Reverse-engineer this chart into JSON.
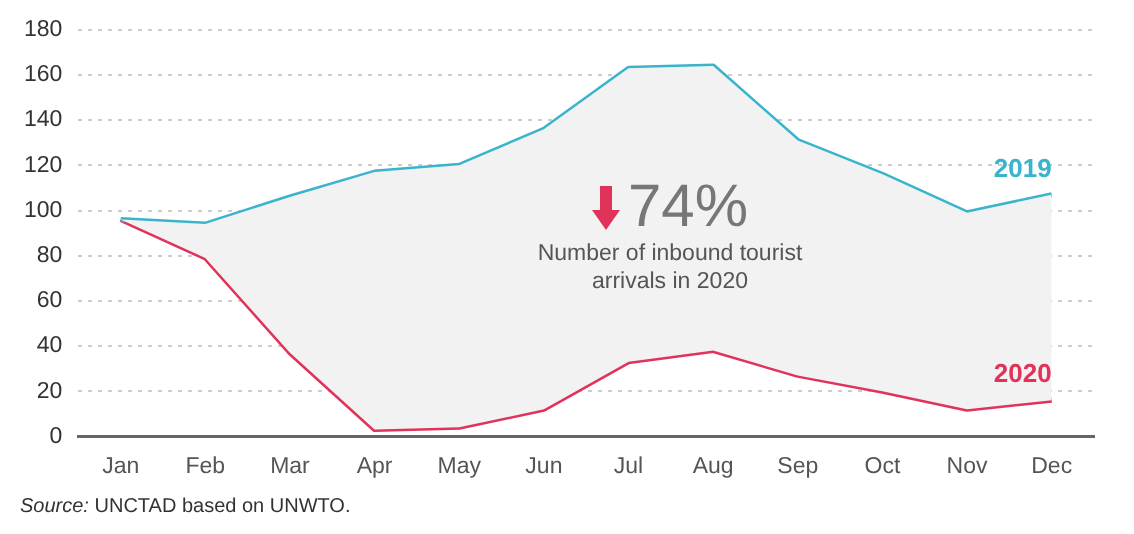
{
  "chart_data": {
    "type": "line",
    "categories": [
      "Jan",
      "Feb",
      "Mar",
      "Apr",
      "May",
      "Jun",
      "Jul",
      "Aug",
      "Sep",
      "Oct",
      "Nov",
      "Dec"
    ],
    "series": [
      {
        "name": "2019",
        "color": "#3ab4cc",
        "values": [
          96,
          94,
          106,
          117,
          120,
          136,
          163,
          164,
          131,
          116,
          99,
          107
        ],
        "lower": [
          96,
          79,
          37,
          3,
          4,
          12,
          33,
          38,
          27,
          20,
          12,
          16
        ],
        "upper": [
          96,
          94,
          106,
          117,
          120,
          136,
          163,
          164,
          131,
          116,
          99,
          107
        ]
      },
      {
        "name": "2020",
        "color": "#e0335a",
        "values": [
          96,
          79,
          37,
          3,
          4,
          12,
          33,
          38,
          27,
          20,
          12,
          16
        ]
      }
    ],
    "ylim": [
      0,
      180
    ],
    "yticks": [
      0,
      20,
      40,
      60,
      80,
      100,
      120,
      140,
      160,
      180
    ],
    "grid": "y",
    "legend": false,
    "marker": "none",
    "line_style": "solid",
    "annotations": [
      "74%",
      "Number of inbound tourist arrivals in 2020",
      "Source: UNCTAD based on UNWTO."
    ]
  }
}
